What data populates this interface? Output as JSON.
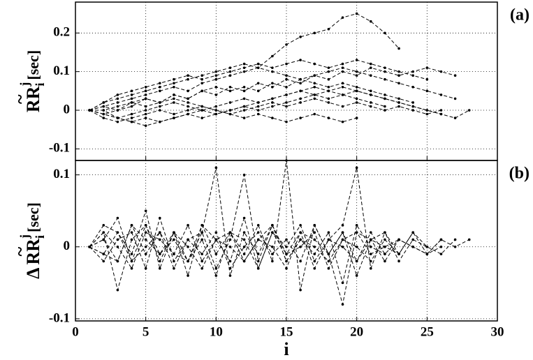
{
  "chart_data": [
    {
      "type": "line",
      "panel_label": "(a)",
      "ylabel": {
        "accent": "~",
        "prefix": "",
        "text": "RR",
        "sub": "i",
        "sup": "j",
        "unit": "[sec]"
      },
      "color": "#000000",
      "line_style": "dashed",
      "grid": true,
      "show_xtick_labels": false,
      "xlim": [
        0,
        30
      ],
      "xticks": [
        0,
        5,
        10,
        15,
        20,
        25,
        30
      ],
      "ylim": [
        -0.13,
        0.28
      ],
      "yticks": [
        -0.1,
        0,
        0.1,
        0.2
      ],
      "x": [
        1,
        2,
        3,
        4,
        5,
        6,
        7,
        8,
        9,
        10,
        11,
        12,
        13,
        14,
        15,
        16,
        17,
        18,
        19,
        20,
        21,
        22,
        23,
        24,
        25,
        26,
        27,
        28
      ],
      "series": [
        {
          "values": [
            0,
            0.01,
            0.02,
            0.03,
            0.04,
            0.05,
            0.06,
            0.05,
            0.07,
            0.08,
            0.09,
            0.1,
            0.11,
            0.14,
            0.17,
            0.19,
            0.2,
            0.21,
            0.24,
            0.25,
            0.23,
            0.2,
            0.16,
            null,
            null,
            null,
            null,
            null
          ]
        },
        {
          "values": [
            0,
            -0.01,
            0,
            0.02,
            0.03,
            0.02,
            0.04,
            0.03,
            0.05,
            0.04,
            0.06,
            0.05,
            0.07,
            0.06,
            0.08,
            0.07,
            0.09,
            0.08,
            0.1,
            0.09,
            0.11,
            0.1,
            0.09,
            0.1,
            0.11,
            0.1,
            0.09,
            null
          ]
        },
        {
          "values": [
            0,
            -0.02,
            -0.03,
            -0.02,
            -0.01,
            0,
            -0.01,
            0,
            0.01,
            0,
            -0.01,
            0,
            0.01,
            0.02,
            0.01,
            0.02,
            0.03,
            0.02,
            0.01,
            0.02,
            0.01,
            0,
            0.01,
            0,
            -0.01,
            0,
            null,
            null
          ]
        },
        {
          "values": [
            0,
            0.02,
            0.04,
            0.05,
            0.06,
            0.07,
            0.08,
            0.09,
            0.08,
            0.09,
            0.1,
            0.11,
            0.12,
            0.11,
            0.12,
            0.13,
            0.12,
            0.11,
            0.12,
            0.13,
            0.12,
            0.11,
            0.1,
            0.09,
            0.08,
            null,
            null,
            null
          ]
        },
        {
          "values": [
            0,
            0,
            -0.02,
            -0.03,
            -0.04,
            -0.03,
            -0.02,
            -0.01,
            -0.02,
            -0.01,
            0,
            0.01,
            0,
            0.01,
            0.02,
            0.03,
            0.04,
            0.03,
            0.04,
            0.05,
            0.04,
            0.03,
            0.02,
            0.01,
            0,
            -0.01,
            -0.02,
            0
          ]
        },
        {
          "values": [
            0,
            0.01,
            0,
            0.01,
            0.03,
            0.02,
            0.04,
            0.03,
            0.05,
            0.06,
            0.05,
            0.06,
            0.05,
            0.07,
            0.06,
            0.08,
            0.07,
            0.06,
            0.07,
            0.06,
            0.05,
            0.04,
            0.03,
            0.02,
            null,
            null,
            null,
            null
          ]
        },
        {
          "values": [
            0,
            -0.01,
            -0.02,
            -0.01,
            0,
            0.01,
            0.02,
            0.01,
            0,
            0.01,
            0.02,
            0.03,
            0.02,
            0.03,
            0.04,
            0.05,
            0.06,
            0.05,
            0.04,
            0.03,
            0.02,
            0.01,
            null,
            null,
            null,
            null,
            null,
            null
          ]
        },
        {
          "values": [
            0,
            0.02,
            0.03,
            0.04,
            0.05,
            0.06,
            0.07,
            0.08,
            0.09,
            0.1,
            0.11,
            0.12,
            0.11,
            0.1,
            0.09,
            0.08,
            0.09,
            0.1,
            0.11,
            0.1,
            0.09,
            0.08,
            0.07,
            0.06,
            0.05,
            0.04,
            0.03,
            null
          ]
        },
        {
          "values": [
            0,
            0,
            0.01,
            0.02,
            0.01,
            0.02,
            0.03,
            0.02,
            0.01,
            0,
            -0.01,
            -0.02,
            -0.01,
            -0.02,
            -0.03,
            -0.02,
            -0.01,
            -0.02,
            -0.03,
            -0.02,
            null,
            null,
            null,
            null,
            null,
            null,
            null,
            null
          ]
        },
        {
          "values": [
            0,
            -0.01,
            -0.02,
            -0.03,
            -0.02,
            -0.03,
            -0.02,
            -0.01,
            0,
            -0.01,
            0,
            0.01,
            0.02,
            0.03,
            0.04,
            0.05,
            0.04,
            0.05,
            0.06,
            0.05,
            0.04,
            0.03,
            0.02,
            0.01,
            0,
            -0.01,
            null,
            null
          ]
        }
      ]
    },
    {
      "type": "line",
      "panel_label": "(b)",
      "ylabel": {
        "accent": "~",
        "prefix": "Δ",
        "text": "RR",
        "sub": "i",
        "sup": "j",
        "unit": "[sec]"
      },
      "xlabel": "i",
      "color": "#000000",
      "line_style": "dashed",
      "grid": true,
      "show_xtick_labels": true,
      "xlim": [
        0,
        30
      ],
      "xticks": [
        0,
        5,
        10,
        15,
        20,
        25,
        30
      ],
      "ylim": [
        -0.103,
        0.12
      ],
      "yticks": [
        -0.1,
        0,
        0.1
      ],
      "x": [
        1,
        2,
        3,
        4,
        5,
        6,
        7,
        8,
        9,
        10,
        11,
        12,
        13,
        14,
        15,
        16,
        17,
        18,
        19,
        20,
        21,
        22,
        23,
        24,
        25,
        26,
        27,
        28
      ],
      "series": [
        {
          "values": [
            0,
            0.01,
            -0.02,
            0.03,
            -0.01,
            0.02,
            -0.03,
            0.01,
            0.02,
            0.11,
            -0.04,
            0.02,
            -0.01,
            0.03,
            -0.02,
            0.01,
            0,
            -0.02,
            0.01,
            0.02,
            -0.01,
            0,
            0.01,
            null,
            null,
            null,
            null,
            null
          ]
        },
        {
          "values": [
            0,
            -0.01,
            0.02,
            -0.02,
            0.03,
            -0.01,
            0.01,
            -0.02,
            0.02,
            -0.03,
            0.01,
            0.1,
            -0.02,
            0.03,
            -0.01,
            0.02,
            -0.03,
            0.01,
            0,
            -0.02,
            0.02,
            -0.01,
            0.01,
            0,
            -0.01,
            0.01,
            null,
            null
          ]
        },
        {
          "values": [
            0,
            0.02,
            -0.06,
            0.01,
            0.03,
            -0.02,
            0.02,
            0,
            -0.03,
            0.01,
            0.02,
            -0.01,
            0.03,
            -0.02,
            0.12,
            -0.06,
            0.03,
            -0.01,
            0.02,
            -0.04,
            0.01,
            0.02,
            -0.02,
            0.01,
            0,
            null,
            null,
            null
          ]
        },
        {
          "values": [
            0,
            -0.02,
            0.01,
            0.02,
            -0.03,
            0.04,
            -0.02,
            0.01,
            -0.01,
            0.02,
            -0.03,
            0,
            0.02,
            -0.01,
            0.01,
            -0.02,
            0.03,
            -0.01,
            -0.08,
            0.02,
            0.01,
            -0.02,
            0.01,
            0,
            -0.01,
            0.01,
            0,
            0.01
          ]
        },
        {
          "values": [
            0,
            0.03,
            0.02,
            -0.01,
            0.05,
            -0.03,
            0.02,
            -0.04,
            0.03,
            0.01,
            -0.02,
            0.04,
            -0.03,
            0.02,
            0,
            0.03,
            -0.02,
            0.01,
            0.03,
            0.11,
            -0.03,
            0.02,
            -0.01,
            null,
            null,
            null,
            null,
            null
          ]
        },
        {
          "values": [
            0,
            -0.01,
            -0.02,
            0.03,
            0.01,
            -0.01,
            0.02,
            -0.02,
            0.01,
            -0.04,
            0.02,
            0.01,
            -0.03,
            0.02,
            -0.01,
            0,
            0.02,
            -0.03,
            0.01,
            0,
            -0.02,
            0.01,
            -0.01,
            0.02,
            0,
            -0.01,
            0.01,
            null
          ]
        },
        {
          "values": [
            0,
            0.02,
            0,
            -0.03,
            0.02,
            0.01,
            -0.01,
            0.03,
            -0.02,
            0.01,
            0,
            -0.02,
            0.01,
            0.03,
            -0.02,
            0.01,
            -0.01,
            0.02,
            -0.05,
            0.03,
            0,
            -0.01,
            null,
            null,
            null,
            null,
            null,
            null
          ]
        },
        {
          "values": [
            0,
            0.01,
            0.04,
            -0.02,
            0,
            0.02,
            -0.01,
            -0.02,
            0.03,
            -0.01,
            0.02,
            -0.02,
            0.01,
            0,
            -0.03,
            0.02,
            0.01,
            -0.01,
            0.02,
            -0.02,
            0.01,
            0,
            -0.01,
            0.02,
            -0.01,
            0,
            null,
            null
          ]
        }
      ]
    }
  ]
}
